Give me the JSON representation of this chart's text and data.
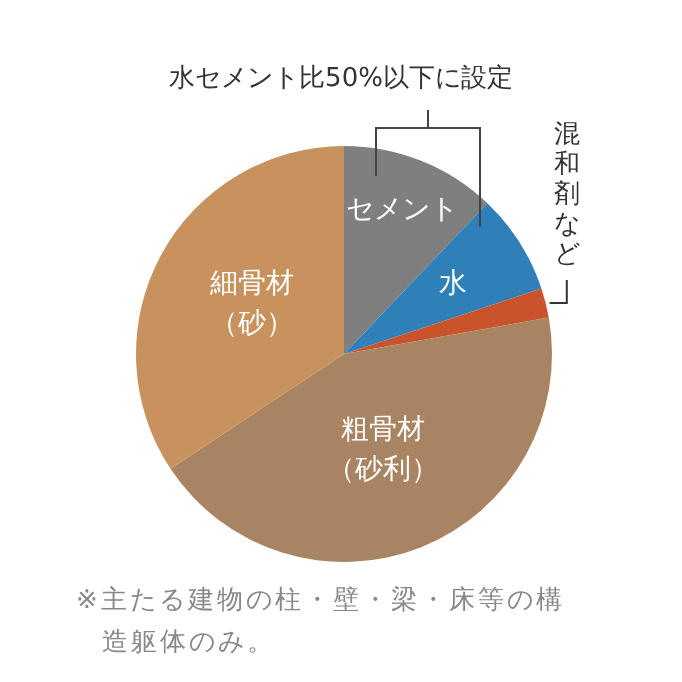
{
  "chart_data": {
    "type": "pie",
    "title": "水セメント比50%以下に設定",
    "categories": [
      "セメント",
      "水",
      "混和剤など",
      "粗骨材（砂利）",
      "細骨材（砂）"
    ],
    "values": [
      12.1,
      7.8,
      2.3,
      43.5,
      34.3
    ],
    "colors": [
      "#7f7f7f",
      "#2f80b9",
      "#c9542b",
      "#a98462",
      "#c8925f"
    ],
    "annotations": [
      "※主たる建物の柱・壁・梁・床等の構造躯体のみ。"
    ]
  }
}
